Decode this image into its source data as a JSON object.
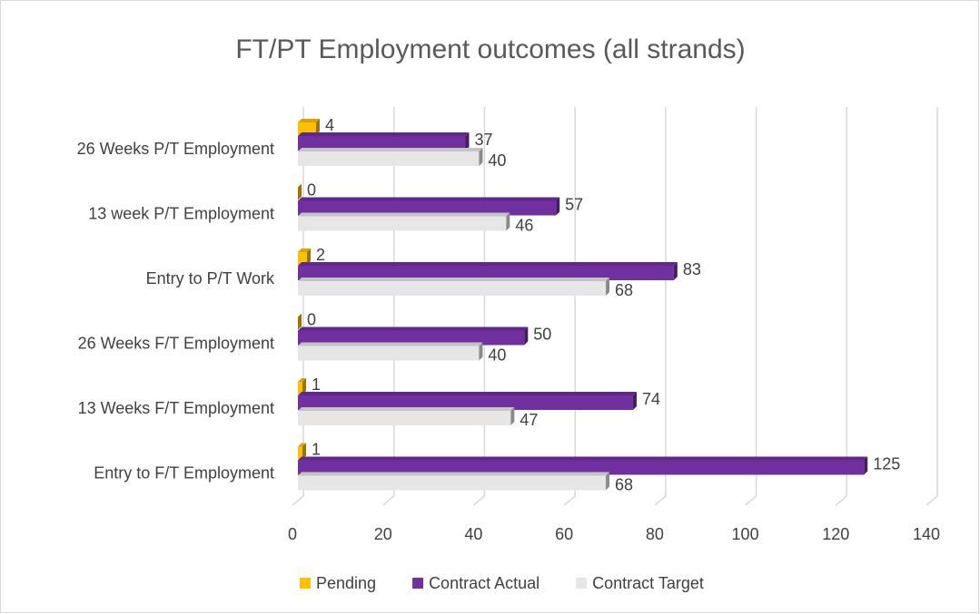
{
  "chart_data": {
    "type": "bar",
    "orientation": "horizontal",
    "title": "FT/PT Employment outcomes (all strands)",
    "categories": [
      "26 Weeks P/T Employment",
      "13 week P/T Employment",
      "Entry to P/T Work",
      "26 Weeks F/T Employment",
      "13 Weeks F/T Employment",
      "Entry to F/T Employment"
    ],
    "series": [
      {
        "name": "Pending",
        "color": "#ffc000",
        "values": [
          4,
          0,
          2,
          0,
          1,
          1
        ]
      },
      {
        "name": "Contract Actual",
        "color": "#7030a0",
        "values": [
          37,
          57,
          83,
          50,
          74,
          125
        ]
      },
      {
        "name": "Contract Target",
        "color": "#e6e6e6",
        "values": [
          40,
          46,
          68,
          40,
          47,
          68
        ]
      }
    ],
    "xlim": [
      0,
      140
    ],
    "xticks": [
      0,
      20,
      40,
      60,
      80,
      100,
      120,
      140
    ],
    "grid": true,
    "legend": "bottom"
  }
}
